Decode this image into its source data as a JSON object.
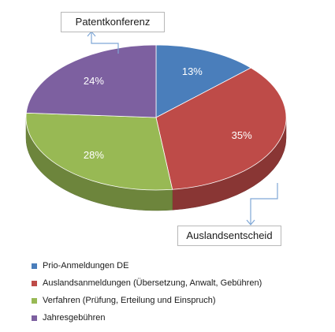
{
  "chart_data": {
    "type": "pie",
    "style": "3d",
    "slices": [
      {
        "label": "Prio-Anmeldungen DE",
        "value": 13,
        "value_label": "13%",
        "color": "#4a7ebb"
      },
      {
        "label": "Auslandsanmeldungen (Übersetzung, Anwalt, Gebühren)",
        "value": 35,
        "value_label": "35%",
        "color": "#be4b48"
      },
      {
        "label": "Verfahren (Prüfung, Erteilung und Einspruch)",
        "value": 28,
        "value_label": "28%",
        "color": "#98b954"
      },
      {
        "label": "Jahresgebühren",
        "value": 24,
        "value_label": "24%",
        "color": "#7d60a0"
      }
    ],
    "legend_position": "bottom",
    "annotations": [
      "Patentkonferenz",
      "Auslandsentscheid"
    ]
  },
  "callouts": {
    "top": "Patentkonferenz",
    "bottom": "Auslandsentscheid"
  },
  "legend": [
    {
      "label": "Prio-Anmeldungen DE",
      "color": "#4a7ebb"
    },
    {
      "label": "Auslandsanmeldungen (Übersetzung, Anwalt, Gebühren)",
      "color": "#be4b48"
    },
    {
      "label": "Verfahren (Prüfung, Erteilung und Einspruch)",
      "color": "#98b954"
    },
    {
      "label": "Jahresgebühren",
      "color": "#7d60a0"
    }
  ]
}
